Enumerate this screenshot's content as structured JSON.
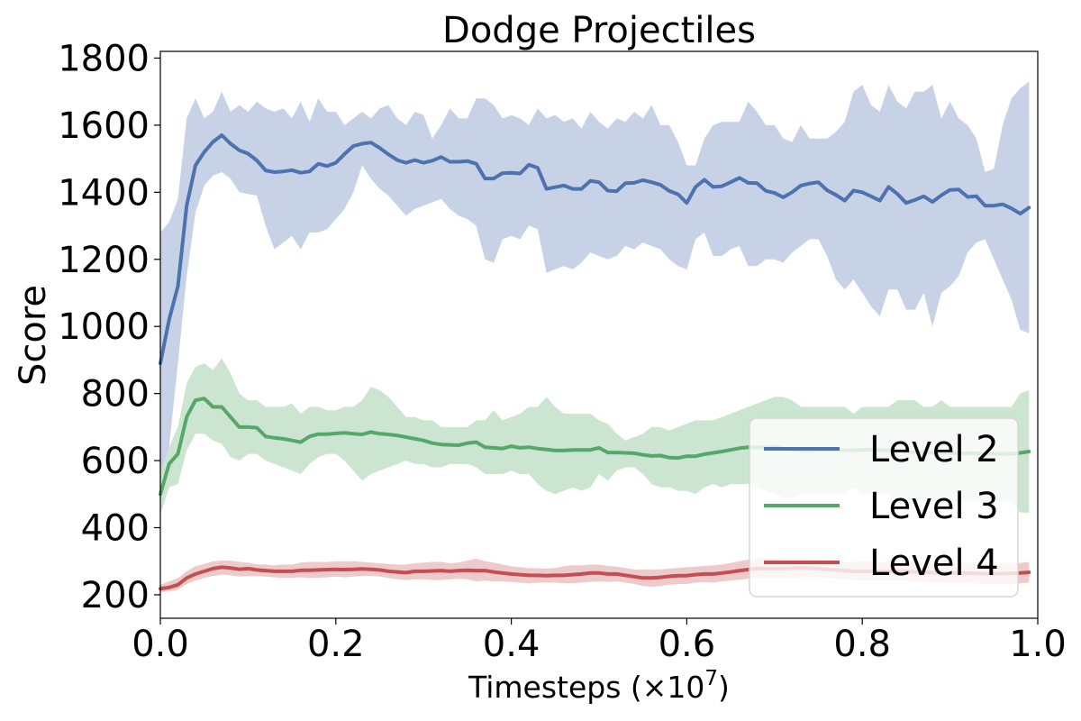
{
  "chart_data": {
    "type": "line",
    "title": "Dodge Projectiles",
    "xlabel_main": "Timesteps (×10",
    "xlabel_exp": "7",
    "xlabel_end": ")",
    "ylabel": "Score",
    "xlim": [
      0.0,
      1.0
    ],
    "ylim": [
      130,
      1820
    ],
    "xticks": [
      "0.0",
      "0.2",
      "0.4",
      "0.6",
      "0.8",
      "1.0"
    ],
    "yticks": [
      "200",
      "400",
      "600",
      "800",
      "1000",
      "1200",
      "1400",
      "1600",
      "1800"
    ],
    "grid": false,
    "legend_position": "lower-right",
    "x": [
      0.0,
      0.01,
      0.02,
      0.03,
      0.04,
      0.05,
      0.06,
      0.07,
      0.08,
      0.09,
      0.1,
      0.11,
      0.12,
      0.13,
      0.14,
      0.15,
      0.16,
      0.17,
      0.18,
      0.19,
      0.2,
      0.21,
      0.22,
      0.23,
      0.24,
      0.25,
      0.26,
      0.27,
      0.28,
      0.29,
      0.3,
      0.31,
      0.32,
      0.33,
      0.34,
      0.35,
      0.36,
      0.37,
      0.38,
      0.39,
      0.4,
      0.41,
      0.42,
      0.43,
      0.44,
      0.45,
      0.46,
      0.47,
      0.48,
      0.49,
      0.5,
      0.51,
      0.52,
      0.53,
      0.54,
      0.55,
      0.56,
      0.57,
      0.58,
      0.59,
      0.6,
      0.61,
      0.62,
      0.63,
      0.64,
      0.65,
      0.66,
      0.67,
      0.68,
      0.69,
      0.7,
      0.71,
      0.72,
      0.73,
      0.74,
      0.75,
      0.76,
      0.77,
      0.78,
      0.79,
      0.8,
      0.81,
      0.82,
      0.83,
      0.84,
      0.85,
      0.86,
      0.87,
      0.88,
      0.89,
      0.9,
      0.91,
      0.92,
      0.93,
      0.94,
      0.95,
      0.96,
      0.97,
      0.98,
      0.99
    ],
    "series": [
      {
        "name": "Level 2",
        "color": "#4c72b0",
        "fill": "#c8d2e6",
        "values": [
          890,
          1020,
          1120,
          1360,
          1480,
          1520,
          1550,
          1570,
          1545,
          1525,
          1515,
          1495,
          1465,
          1460,
          1462,
          1466,
          1458,
          1462,
          1485,
          1478,
          1488,
          1514,
          1538,
          1545,
          1548,
          1532,
          1513,
          1496,
          1488,
          1496,
          1488,
          1494,
          1505,
          1491,
          1491,
          1493,
          1485,
          1441,
          1441,
          1457,
          1458,
          1456,
          1482,
          1473,
          1410,
          1415,
          1420,
          1410,
          1410,
          1434,
          1430,
          1405,
          1403,
          1427,
          1428,
          1436,
          1430,
          1422,
          1404,
          1394,
          1368,
          1416,
          1437,
          1416,
          1418,
          1430,
          1443,
          1428,
          1427,
          1404,
          1398,
          1385,
          1400,
          1420,
          1426,
          1430,
          1406,
          1392,
          1375,
          1405,
          1400,
          1388,
          1375,
          1416,
          1395,
          1368,
          1377,
          1388,
          1371,
          1391,
          1407,
          1408,
          1386,
          1388,
          1360,
          1360,
          1364,
          1352,
          1336,
          1354
        ],
        "upper": [
          1280,
          1310,
          1380,
          1620,
          1680,
          1620,
          1640,
          1700,
          1640,
          1660,
          1640,
          1670,
          1650,
          1640,
          1650,
          1620,
          1670,
          1610,
          1680,
          1640,
          1640,
          1600,
          1620,
          1640,
          1620,
          1650,
          1660,
          1620,
          1600,
          1640,
          1630,
          1560,
          1600,
          1650,
          1620,
          1620,
          1680,
          1680,
          1660,
          1620,
          1630,
          1620,
          1600,
          1650,
          1620,
          1630,
          1610,
          1620,
          1590,
          1640,
          1610,
          1590,
          1620,
          1610,
          1640,
          1620,
          1660,
          1600,
          1600,
          1550,
          1480,
          1480,
          1560,
          1600,
          1610,
          1610,
          1610,
          1670,
          1640,
          1600,
          1600,
          1560,
          1550,
          1600,
          1560,
          1560,
          1560,
          1580,
          1610,
          1700,
          1720,
          1660,
          1640,
          1720,
          1670,
          1650,
          1700,
          1700,
          1720,
          1620,
          1670,
          1620,
          1600,
          1560,
          1460,
          1470,
          1600,
          1680,
          1710,
          1730
        ],
        "lower": [
          560,
          640,
          890,
          1150,
          1340,
          1420,
          1450,
          1460,
          1440,
          1400,
          1395,
          1390,
          1300,
          1230,
          1250,
          1270,
          1230,
          1280,
          1280,
          1290,
          1320,
          1350,
          1400,
          1480,
          1440,
          1410,
          1390,
          1360,
          1330,
          1350,
          1360,
          1370,
          1380,
          1350,
          1330,
          1320,
          1300,
          1200,
          1190,
          1260,
          1270,
          1260,
          1300,
          1290,
          1160,
          1170,
          1180,
          1170,
          1190,
          1220,
          1210,
          1200,
          1210,
          1240,
          1230,
          1250,
          1240,
          1230,
          1200,
          1180,
          1170,
          1260,
          1280,
          1210,
          1210,
          1230,
          1240,
          1180,
          1180,
          1200,
          1200,
          1190,
          1220,
          1240,
          1260,
          1260,
          1210,
          1140,
          1110,
          1140,
          1100,
          1060,
          1030,
          1110,
          1110,
          1050,
          1050,
          1100,
          1000,
          1100,
          1120,
          1150,
          1220,
          1250,
          1260,
          1200,
          1140,
          1080,
          990,
          980
        ]
      },
      {
        "name": "Level 3",
        "color": "#55a868",
        "fill": "#cbe5d1",
        "values": [
          500,
          590,
          620,
          730,
          780,
          785,
          760,
          760,
          730,
          700,
          700,
          698,
          672,
          668,
          665,
          660,
          655,
          672,
          679,
          679,
          681,
          683,
          680,
          678,
          685,
          680,
          678,
          675,
          670,
          665,
          660,
          652,
          648,
          647,
          646,
          652,
          655,
          640,
          638,
          636,
          643,
          638,
          640,
          636,
          633,
          630,
          630,
          632,
          632,
          632,
          638,
          624,
          624,
          623,
          622,
          617,
          614,
          615,
          609,
          608,
          613,
          613,
          619,
          623,
          627,
          632,
          637,
          640,
          639,
          640,
          641,
          636,
          633,
          630,
          630,
          632,
          631,
          632,
          631,
          631,
          632,
          633,
          632,
          630,
          632,
          627,
          625,
          625,
          623,
          623,
          622,
          621,
          622,
          622,
          620,
          620,
          620,
          620,
          623,
          627
        ],
        "upper": [
          560,
          640,
          700,
          830,
          880,
          890,
          870,
          905,
          860,
          800,
          780,
          780,
          760,
          760,
          760,
          770,
          740,
          760,
          760,
          750,
          750,
          760,
          760,
          780,
          820,
          810,
          790,
          760,
          730,
          730,
          720,
          720,
          700,
          700,
          700,
          700,
          720,
          720,
          750,
          720,
          730,
          740,
          760,
          760,
          790,
          760,
          740,
          740,
          740,
          740,
          720,
          710,
          680,
          660,
          670,
          680,
          700,
          700,
          690,
          700,
          710,
          720,
          720,
          720,
          730,
          740,
          750,
          760,
          770,
          780,
          790,
          790,
          780,
          760,
          760,
          760,
          760,
          760,
          760,
          740,
          760,
          760,
          760,
          760,
          780,
          780,
          780,
          760,
          760,
          780,
          760,
          760,
          760,
          760,
          760,
          760,
          760,
          760,
          800,
          810
        ],
        "lower": [
          440,
          520,
          530,
          630,
          680,
          680,
          660,
          650,
          610,
          600,
          620,
          620,
          600,
          590,
          580,
          570,
          560,
          590,
          610,
          620,
          620,
          600,
          570,
          540,
          560,
          570,
          580,
          590,
          600,
          590,
          590,
          580,
          580,
          590,
          590,
          590,
          580,
          560,
          560,
          560,
          570,
          560,
          560,
          530,
          510,
          500,
          510,
          520,
          510,
          520,
          560,
          540,
          570,
          580,
          580,
          560,
          530,
          520,
          520,
          510,
          510,
          500,
          520,
          530,
          520,
          530,
          530,
          530,
          520,
          510,
          500,
          490,
          490,
          500,
          500,
          500,
          500,
          500,
          500,
          520,
          500,
          500,
          500,
          500,
          480,
          470,
          470,
          490,
          480,
          470,
          480,
          480,
          480,
          480,
          480,
          480,
          480,
          480,
          445,
          445
        ]
      },
      {
        "name": "Level 4",
        "color": "#c44e52",
        "fill": "#eecbcb",
        "values": [
          218,
          222,
          230,
          250,
          262,
          270,
          278,
          282,
          280,
          276,
          278,
          274,
          272,
          270,
          270,
          270,
          273,
          273,
          274,
          275,
          276,
          275,
          276,
          277,
          276,
          274,
          270,
          268,
          266,
          270,
          270,
          271,
          272,
          270,
          272,
          273,
          272,
          272,
          268,
          265,
          262,
          260,
          258,
          258,
          257,
          258,
          258,
          260,
          262,
          265,
          265,
          262,
          262,
          258,
          254,
          250,
          250,
          252,
          255,
          257,
          257,
          260,
          262,
          262,
          265,
          268,
          272,
          275,
          278,
          278,
          278,
          278,
          279,
          280,
          279,
          278,
          276,
          274,
          272,
          270,
          270,
          270,
          270,
          270,
          270,
          270,
          268,
          267,
          266,
          266,
          265,
          265,
          264,
          264,
          263,
          263,
          263,
          264,
          265,
          267
        ],
        "upper": [
          230,
          240,
          250,
          270,
          285,
          292,
          300,
          302,
          302,
          298,
          296,
          290,
          290,
          288,
          290,
          290,
          296,
          298,
          298,
          298,
          300,
          300,
          300,
          298,
          296,
          294,
          292,
          290,
          290,
          294,
          296,
          298,
          298,
          294,
          296,
          302,
          308,
          300,
          296,
          290,
          285,
          282,
          280,
          279,
          278,
          280,
          285,
          288,
          288,
          290,
          290,
          286,
          284,
          280,
          276,
          275,
          275,
          276,
          278,
          280,
          282,
          284,
          286,
          288,
          290,
          295,
          300,
          305,
          310,
          310,
          310,
          308,
          308,
          308,
          306,
          304,
          302,
          300,
          298,
          298,
          300,
          300,
          298,
          298,
          298,
          298,
          298,
          295,
          295,
          295,
          295,
          295,
          295,
          295,
          295,
          295,
          295,
          295,
          295,
          298
        ],
        "lower": [
          208,
          210,
          215,
          232,
          242,
          250,
          256,
          260,
          258,
          254,
          256,
          256,
          254,
          252,
          250,
          250,
          252,
          250,
          250,
          252,
          254,
          252,
          254,
          256,
          256,
          254,
          250,
          246,
          244,
          246,
          246,
          244,
          244,
          246,
          248,
          246,
          240,
          242,
          240,
          240,
          238,
          236,
          234,
          236,
          236,
          236,
          234,
          234,
          236,
          238,
          240,
          238,
          240,
          236,
          232,
          226,
          224,
          226,
          230,
          232,
          232,
          236,
          238,
          236,
          240,
          242,
          245,
          248,
          250,
          250,
          250,
          250,
          250,
          252,
          252,
          252,
          250,
          248,
          246,
          244,
          242,
          242,
          242,
          242,
          242,
          242,
          240,
          238,
          236,
          236,
          235,
          235,
          234,
          234,
          232,
          232,
          232,
          232,
          234,
          236
        ]
      }
    ]
  }
}
